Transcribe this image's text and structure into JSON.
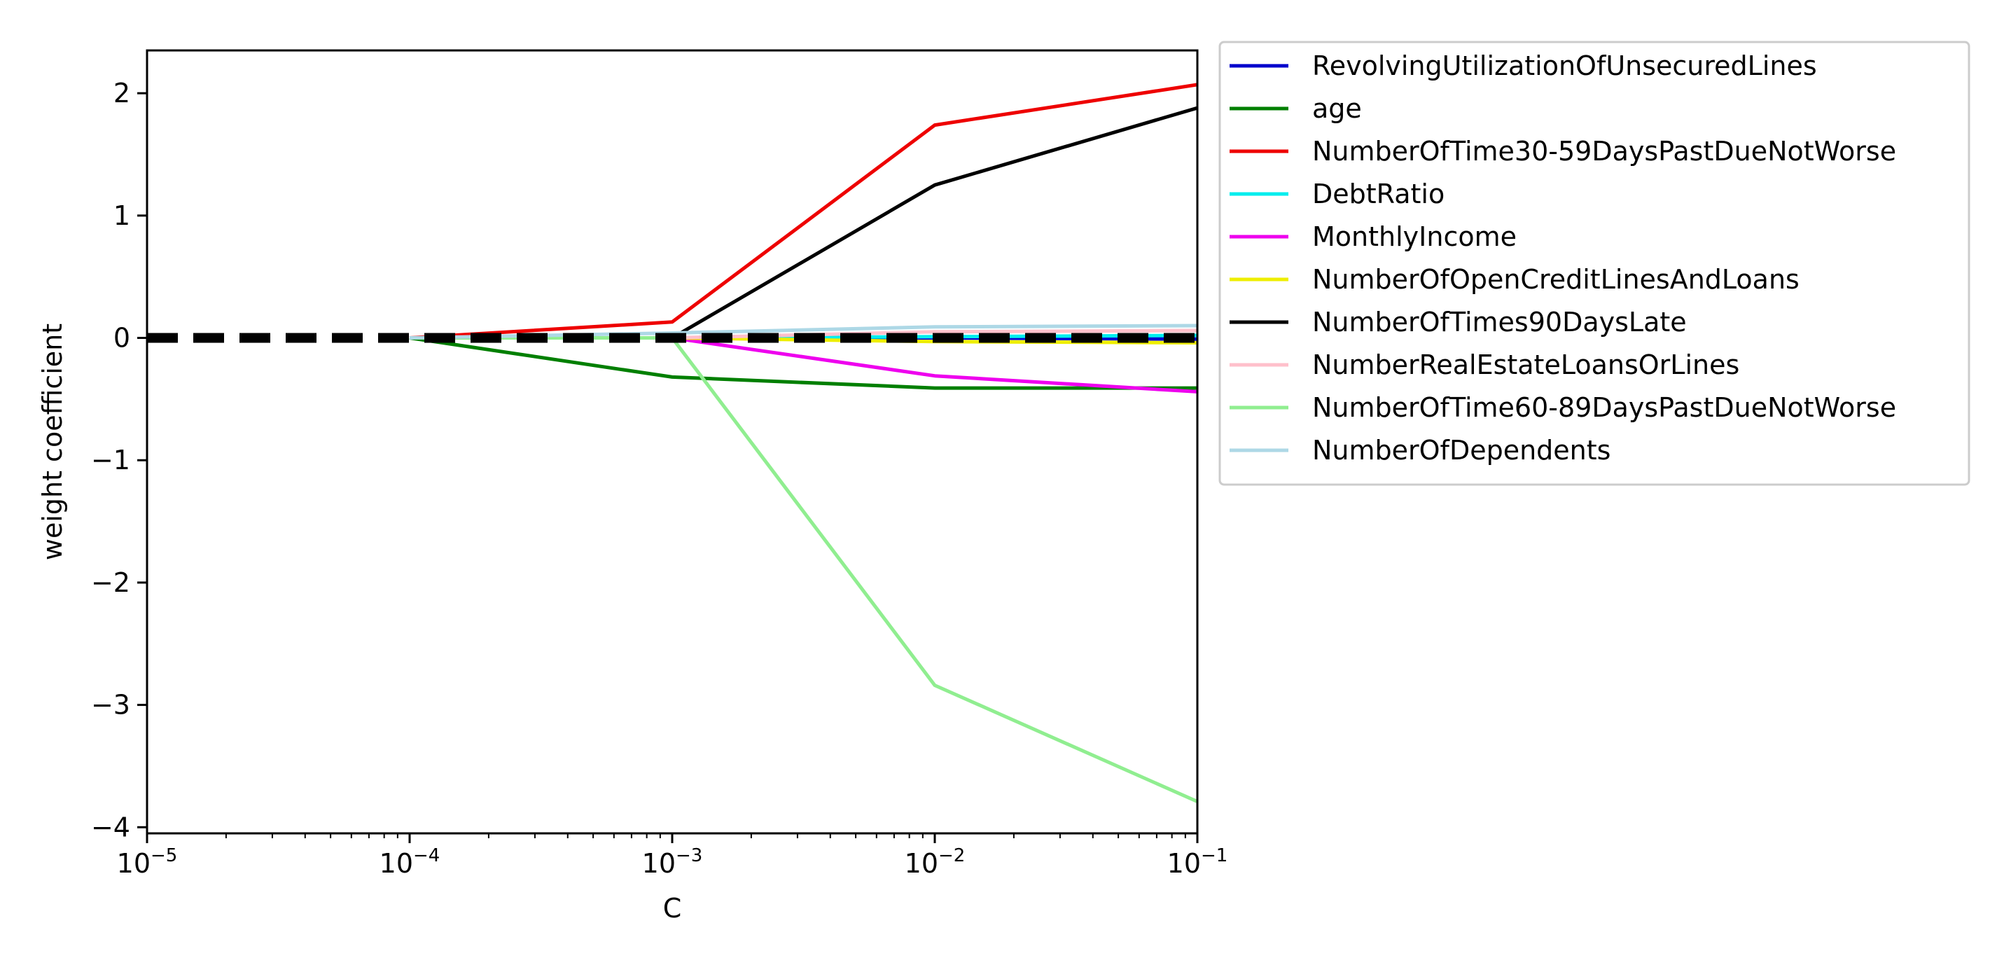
{
  "chart_data": {
    "type": "line",
    "title": "",
    "xlabel": "C",
    "ylabel": "weight coefficient",
    "xscale": "log",
    "xlim": [
      1e-05,
      0.1
    ],
    "ylim": [
      -4.05,
      2.35
    ],
    "x_ticks": [
      {
        "value": 1e-05,
        "base": "10",
        "exp": "−5"
      },
      {
        "value": 0.0001,
        "base": "10",
        "exp": "−4"
      },
      {
        "value": 0.001,
        "base": "10",
        "exp": "−3"
      },
      {
        "value": 0.01,
        "base": "10",
        "exp": "−2"
      },
      {
        "value": 0.1,
        "base": "10",
        "exp": "−1"
      }
    ],
    "y_ticks": [
      {
        "value": 2,
        "label": "2"
      },
      {
        "value": 1,
        "label": "1"
      },
      {
        "value": 0,
        "label": "0"
      },
      {
        "value": -1,
        "label": "−1"
      },
      {
        "value": -2,
        "label": "−2"
      },
      {
        "value": -3,
        "label": "−3"
      },
      {
        "value": -4,
        "label": "−4"
      }
    ],
    "grid": false,
    "legend_position": "outside-right",
    "x": [
      0.0001,
      0.001,
      0.01,
      0.1
    ],
    "series": [
      {
        "name": "RevolvingUtilizationOfUnsecuredLines",
        "color": "#0000cc",
        "values": [
          0,
          0,
          0.0,
          -0.01
        ]
      },
      {
        "name": "age",
        "color": "#007f00",
        "values": [
          0,
          -0.32,
          -0.41,
          -0.41
        ]
      },
      {
        "name": "NumberOfTime30-59DaysPastDueNotWorse",
        "color": "#ee0000",
        "values": [
          0,
          0.13,
          1.74,
          2.07
        ]
      },
      {
        "name": "DebtRatio",
        "color": "#00eeee",
        "values": [
          0,
          0,
          0.01,
          0.02
        ]
      },
      {
        "name": "MonthlyIncome",
        "color": "#ee00ee",
        "values": [
          0,
          0,
          -0.31,
          -0.44
        ]
      },
      {
        "name": "NumberOfOpenCreditLinesAndLoans",
        "color": "#eeee00",
        "values": [
          0,
          0,
          -0.03,
          -0.04
        ]
      },
      {
        "name": "NumberOfTimes90DaysLate",
        "color": "#000000",
        "values": [
          0,
          0,
          1.25,
          1.88
        ]
      },
      {
        "name": "NumberRealEstateLoansOrLines",
        "color": "#ffc0cb",
        "values": [
          0,
          0,
          0.05,
          0.06
        ]
      },
      {
        "name": "NumberOfTime60-89DaysPastDueNotWorse",
        "color": "#90ee90",
        "values": [
          0,
          0,
          -2.84,
          -3.79
        ]
      },
      {
        "name": "NumberOfDependents",
        "color": "#add8e6",
        "values": [
          0,
          0.04,
          0.09,
          0.1
        ]
      }
    ],
    "reference_line": {
      "y": 0,
      "style": "dashed",
      "color": "#000000"
    }
  }
}
